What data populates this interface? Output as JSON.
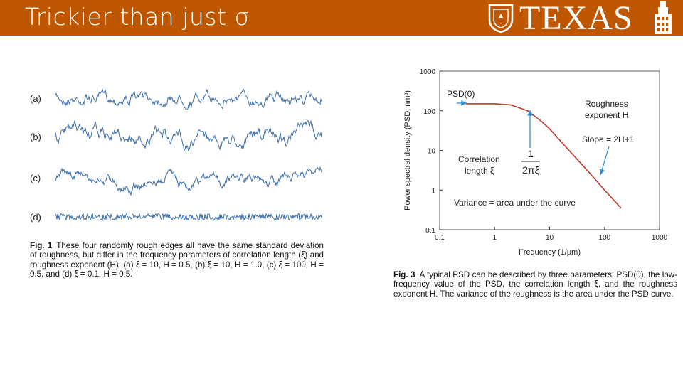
{
  "header": {
    "title": "Trickier than just σ",
    "logo": "TEXAS"
  },
  "figure_left": {
    "panels": [
      "(a)",
      "(b)",
      "(c)",
      "(d)"
    ],
    "caption_label": "Fig. 1",
    "caption": "These four randomly rough edges all have the same standard deviation of roughness, but differ in the frequency parameters of correlation length (ξ) and roughness exponent (H): (a) ξ = 10, H = 0.5, (b) ξ = 10, H = 1.0, (c) ξ = 100, H = 0.5, and (d) ξ = 0.1, H = 0.5."
  },
  "chart_data": {
    "type": "line",
    "x_label": "Frequency (1/μm)",
    "y_label": "Power spectral density (PSD, nm³)",
    "log_x": true,
    "log_y": true,
    "xlim": [
      0.1,
      1000
    ],
    "ylim": [
      0.1,
      1000
    ],
    "xticks": [
      0.1,
      1,
      10,
      100,
      1000
    ],
    "yticks": [
      0.1,
      1,
      10,
      100,
      1000
    ],
    "color": "#c0392b",
    "x": [
      0.3,
      1,
      2,
      4,
      7,
      10,
      20,
      50,
      100,
      200
    ],
    "values": [
      150,
      150,
      140,
      100,
      55,
      35,
      12,
      3,
      1,
      0.35
    ],
    "annotations": {
      "psd0": "PSD(0)",
      "roughness1": "Roughness",
      "roughness2": "exponent H",
      "slope": "Slope = 2H+1",
      "corr1": "Correlation",
      "corr2": "length ξ",
      "frac_num": "1",
      "frac_den": "2πξ",
      "variance": "Variance = area under the curve"
    }
  },
  "figure_right": {
    "caption_label": "Fig. 3",
    "caption": "A typical PSD can be described by three parameters: PSD(0), the low-frequency value of the PSD, the correlation length ξ, and the roughness exponent H. The variance of the roughness is the area under the PSD curve."
  }
}
